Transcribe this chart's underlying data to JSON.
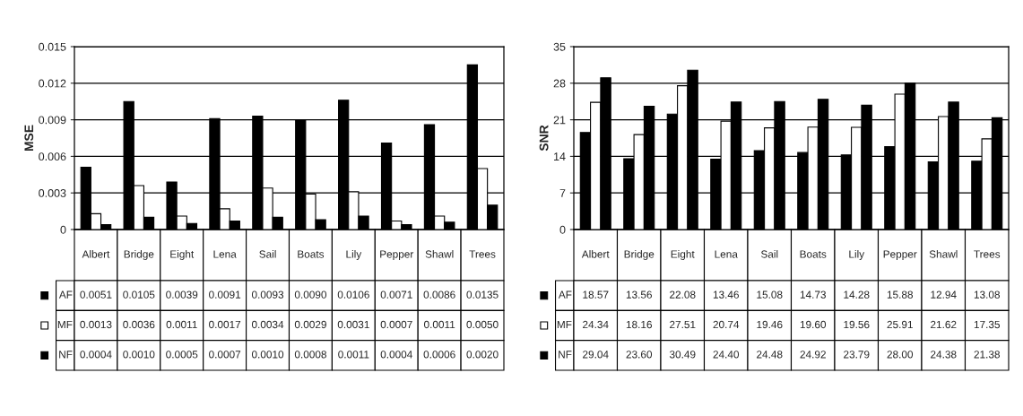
{
  "chart_data": [
    {
      "type": "bar",
      "ylabel": "MSE",
      "categories": [
        "Albert",
        "Bridge",
        "Eight",
        "Lena",
        "Sail",
        "Boats",
        "Lily",
        "Pepper",
        "Shawl",
        "Trees"
      ],
      "series": [
        {
          "name": "AF",
          "color": "#000000",
          "values": [
            0.0051,
            0.0105,
            0.0039,
            0.0091,
            0.0093,
            0.009,
            0.0106,
            0.0071,
            0.0086,
            0.0135
          ],
          "value_labels": [
            "0.0051",
            "0.0105",
            "0.0039",
            "0.0091",
            "0.0093",
            "0.0090",
            "0.0106",
            "0.0071",
            "0.0086",
            "0.0135"
          ]
        },
        {
          "name": "MF",
          "color": "#ffffff",
          "values": [
            0.0013,
            0.0036,
            0.0011,
            0.0017,
            0.0034,
            0.0029,
            0.0031,
            0.0007,
            0.0011,
            0.005
          ],
          "value_labels": [
            "0.0013",
            "0.0036",
            "0.0011",
            "0.0017",
            "0.0034",
            "0.0029",
            "0.0031",
            "0.0007",
            "0.0011",
            "0.0050"
          ]
        },
        {
          "name": "NF",
          "color": "#000000",
          "values": [
            0.0004,
            0.001,
            0.0005,
            0.0007,
            0.001,
            0.0008,
            0.0011,
            0.0004,
            0.0006,
            0.002
          ],
          "value_labels": [
            "0.0004",
            "0.0010",
            "0.0005",
            "0.0007",
            "0.0010",
            "0.0008",
            "0.0011",
            "0.0004",
            "0.0006",
            "0.0020"
          ]
        }
      ],
      "ylim": [
        0,
        0.015
      ],
      "yticks": [
        0,
        0.003,
        0.006,
        0.009,
        0.012,
        0.015
      ],
      "grid": "y",
      "tick_labels": "y",
      "legend": "bottom left"
    },
    {
      "type": "bar",
      "ylabel": "SNR",
      "categories": [
        "Albert",
        "Bridge",
        "Eight",
        "Lena",
        "Sail",
        "Boats",
        "Lily",
        "Pepper",
        "Shawl",
        "Trees"
      ],
      "series": [
        {
          "name": "AF",
          "color": "#000000",
          "values": [
            18.57,
            13.56,
            22.08,
            13.46,
            15.08,
            14.73,
            14.28,
            15.88,
            12.94,
            13.08
          ],
          "value_labels": [
            "18.57",
            "13.56",
            "22.08",
            "13.46",
            "15.08",
            "14.73",
            "14.28",
            "15.88",
            "12.94",
            "13.08"
          ]
        },
        {
          "name": "MF",
          "color": "#ffffff",
          "values": [
            24.34,
            18.16,
            27.51,
            20.74,
            19.46,
            19.6,
            19.56,
            25.91,
            21.62,
            17.35
          ],
          "value_labels": [
            "24.34",
            "18.16",
            "27.51",
            "20.74",
            "19.46",
            "19.60",
            "19.56",
            "25.91",
            "21.62",
            "17.35"
          ]
        },
        {
          "name": "NF",
          "color": "#000000",
          "values": [
            29.04,
            23.6,
            30.49,
            24.4,
            24.48,
            24.92,
            23.79,
            28.0,
            24.38,
            21.38
          ],
          "value_labels": [
            "29.04",
            "23.60",
            "30.49",
            "24.40",
            "24.48",
            "24.92",
            "23.79",
            "28.00",
            "24.38",
            "21.38"
          ]
        }
      ],
      "ylim": [
        0,
        35
      ],
      "yticks": [
        0,
        7,
        14,
        21,
        28,
        35
      ],
      "grid": "y",
      "tick_labels": "y",
      "legend": "bottom left"
    }
  ]
}
